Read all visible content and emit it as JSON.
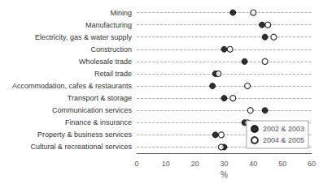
{
  "chart_data": {
    "type": "dot",
    "x_label": "%",
    "categories": [
      "Mining",
      "Manufacturing",
      "Electricity, gas & water supply",
      "Construction",
      "Wholesale trade",
      "Retail trade",
      "Accommodation, cafes & restaurants",
      "Transport & storage",
      "Communication services",
      "Finance & insurance",
      "Property & business services",
      "Cultural & recreational services"
    ],
    "series": [
      {
        "name": "2002 & 2003",
        "color": "#000000",
        "marker": "circle",
        "values": [
          33,
          43,
          44,
          30,
          37,
          27,
          26,
          30,
          44,
          37,
          27,
          30
        ]
      },
      {
        "name": "2004 & 2005",
        "color": "#000000",
        "marker": "open_circle",
        "values": [
          40,
          45,
          47,
          32,
          44,
          28,
          38,
          33,
          39,
          38,
          29,
          29
        ]
      }
    ],
    "xlim": [
      0,
      60
    ],
    "xticks": [
      0,
      10,
      20,
      30,
      40,
      50,
      60
    ],
    "grid": true,
    "legend": "lower right"
  }
}
